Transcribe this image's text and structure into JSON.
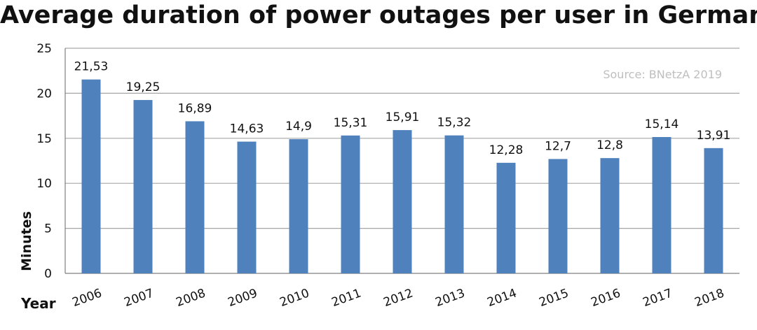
{
  "chart_data": {
    "type": "bar",
    "title": "Average duration of power outages per user in Germany",
    "source": "Source: BNetzA 2019",
    "xlabel": "Year",
    "ylabel": "Minutes",
    "categories": [
      "2006",
      "2007",
      "2008",
      "2009",
      "2010",
      "2011",
      "2012",
      "2013",
      "2014",
      "2015",
      "2016",
      "2017",
      "2018"
    ],
    "values": [
      21.53,
      19.25,
      16.89,
      14.63,
      14.9,
      15.31,
      15.91,
      15.32,
      12.28,
      12.7,
      12.8,
      15.14,
      13.91
    ],
    "value_labels": [
      "21,53",
      "19,25",
      "16,89",
      "14,63",
      "14,9",
      "15,31",
      "15,91",
      "15,32",
      "12,28",
      "12,7",
      "12,8",
      "15,14",
      "13,91"
    ],
    "ylim": [
      0,
      25
    ],
    "yticks": [
      "0",
      "5",
      "10",
      "15",
      "20",
      "25"
    ],
    "grid": true,
    "legend": "none",
    "colors": {
      "bar": "#4f81bd",
      "grid": "#a6a6a6",
      "axis": "#7f7f7f",
      "source": "#bfbfbf",
      "text": "#111111"
    }
  }
}
